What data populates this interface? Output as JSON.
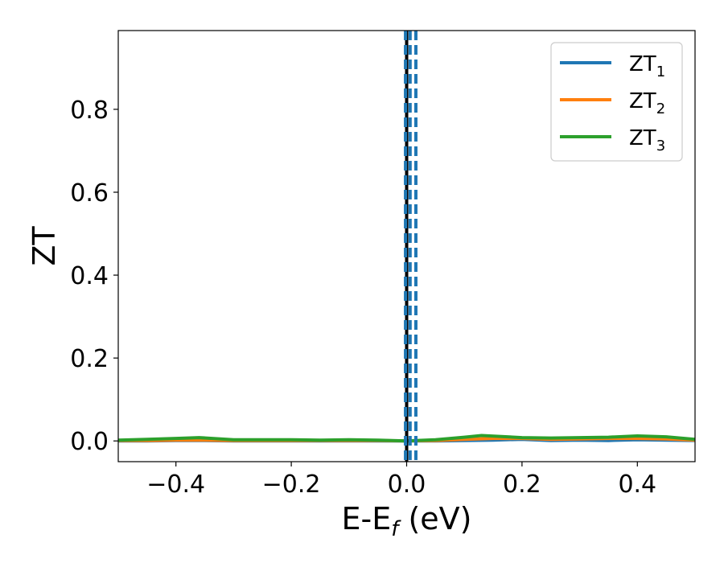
{
  "chart_data": {
    "type": "line",
    "xlabel": {
      "main": "E-E",
      "sub": "f",
      "tail": " (eV)"
    },
    "ylabel": "ZT",
    "xlim": [
      -0.5,
      0.5
    ],
    "ylim": [
      -0.05,
      0.99
    ],
    "x_ticks": [
      {
        "value": -0.4,
        "label": "−0.4"
      },
      {
        "value": -0.2,
        "label": "−0.2"
      },
      {
        "value": 0.0,
        "label": "0.0"
      },
      {
        "value": 0.2,
        "label": "0.2"
      },
      {
        "value": 0.4,
        "label": "0.4"
      }
    ],
    "y_ticks": [
      {
        "value": 0.0,
        "label": "0.0"
      },
      {
        "value": 0.2,
        "label": "0.2"
      },
      {
        "value": 0.4,
        "label": "0.4"
      },
      {
        "value": 0.6,
        "label": "0.6"
      },
      {
        "value": 0.8,
        "label": "0.8"
      }
    ],
    "grid": false,
    "legend_position": "top-right",
    "series": [
      {
        "name": "ZT",
        "name_sub": "1",
        "color": "#1f77b4",
        "x": [
          -0.5,
          -0.45,
          -0.4,
          -0.36,
          -0.3,
          -0.25,
          -0.2,
          -0.15,
          -0.1,
          -0.05,
          0.0,
          0.05,
          0.1,
          0.15,
          0.2,
          0.25,
          0.3,
          0.35,
          0.4,
          0.45,
          0.5
        ],
        "y": [
          0.0,
          0.0,
          0.001,
          0.001,
          0.0,
          0.0,
          0.0,
          0.0,
          0.0,
          0.0,
          0.0,
          0.0,
          0.001,
          0.002,
          0.004,
          0.001,
          0.002,
          0.001,
          0.003,
          0.002,
          0.001
        ]
      },
      {
        "name": "ZT",
        "name_sub": "2",
        "color": "#ff7f0e",
        "x": [
          -0.5,
          -0.45,
          -0.4,
          -0.36,
          -0.3,
          -0.25,
          -0.2,
          -0.15,
          -0.1,
          -0.05,
          0.0,
          0.05,
          0.1,
          0.15,
          0.2,
          0.25,
          0.3,
          0.35,
          0.4,
          0.45,
          0.5
        ],
        "y": [
          0.001,
          0.001,
          0.002,
          0.002,
          0.001,
          0.001,
          0.001,
          0.001,
          0.001,
          0.001,
          0.0,
          0.001,
          0.004,
          0.006,
          0.006,
          0.004,
          0.005,
          0.006,
          0.006,
          0.005,
          0.002
        ]
      },
      {
        "name": "ZT",
        "name_sub": "3",
        "color": "#2ca02c",
        "x": [
          -0.5,
          -0.45,
          -0.4,
          -0.36,
          -0.3,
          -0.25,
          -0.2,
          -0.15,
          -0.1,
          -0.05,
          0.0,
          0.05,
          0.1,
          0.13,
          0.2,
          0.25,
          0.3,
          0.35,
          0.4,
          0.45,
          0.5
        ],
        "y": [
          0.002,
          0.004,
          0.006,
          0.008,
          0.003,
          0.003,
          0.003,
          0.002,
          0.003,
          0.002,
          0.0,
          0.003,
          0.009,
          0.013,
          0.008,
          0.007,
          0.008,
          0.009,
          0.012,
          0.01,
          0.004
        ]
      }
    ],
    "vertical_lines": [
      {
        "x": 0.0,
        "color": "#000000",
        "style": "solid"
      },
      {
        "x": -0.002,
        "color": "#1f77b4",
        "style": "dashed"
      },
      {
        "x": 0.006,
        "color": "#1f77b4",
        "style": "dashed"
      },
      {
        "x": 0.016,
        "color": "#1f77b4",
        "style": "dashed"
      }
    ]
  }
}
